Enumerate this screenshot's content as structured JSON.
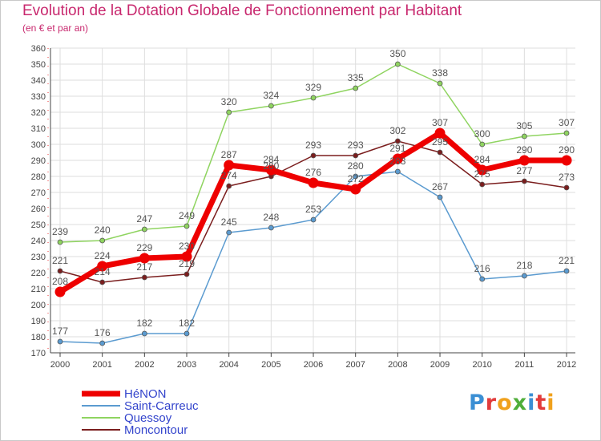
{
  "title": "Evolution de la Dotation Globale de Fonctionnement par Habitant",
  "subtitle": "(en € et par an)",
  "logo": {
    "text": "Proxiti",
    "letter_colors": [
      "#3b8fd4",
      "#e23b3b",
      "#f0a11c",
      "#4fae3a",
      "#3b8fd4",
      "#e23b3b",
      "#f0a11c"
    ]
  },
  "chart_data": {
    "type": "line",
    "title": "Evolution de la Dotation Globale de Fonctionnement par Habitant",
    "subtitle": "(en € et par an)",
    "xlabel": "",
    "ylabel": "",
    "x": [
      "2000",
      "2001",
      "2002",
      "2003",
      "2004",
      "2005",
      "2006",
      "2007",
      "2008",
      "2009",
      "2010",
      "2011",
      "2012"
    ],
    "ylim": [
      170,
      360
    ],
    "yticks": [
      170,
      180,
      190,
      200,
      210,
      220,
      230,
      240,
      250,
      260,
      270,
      280,
      290,
      300,
      310,
      320,
      330,
      340,
      350,
      360
    ],
    "grid": true,
    "legend_position": "bottom-left",
    "series": [
      {
        "name": "HéNON",
        "color": "#ee0000",
        "emphasis": true,
        "values": [
          208,
          224,
          229,
          230,
          287,
          284,
          276,
          272,
          291,
          307,
          284,
          290,
          290
        ]
      },
      {
        "name": "Saint-Carreuc",
        "color": "#5b9bd0",
        "emphasis": false,
        "values": [
          177,
          176,
          182,
          182,
          245,
          248,
          253,
          280,
          283,
          267,
          216,
          218,
          221
        ]
      },
      {
        "name": "Quessoy",
        "color": "#8fd460",
        "emphasis": false,
        "values": [
          239,
          240,
          247,
          249,
          320,
          324,
          329,
          335,
          350,
          338,
          300,
          305,
          307
        ]
      },
      {
        "name": "Moncontour",
        "color": "#7b1e1e",
        "emphasis": false,
        "values": [
          221,
          214,
          217,
          219,
          274,
          280,
          293,
          293,
          302,
          295,
          275,
          277,
          273
        ]
      }
    ]
  }
}
